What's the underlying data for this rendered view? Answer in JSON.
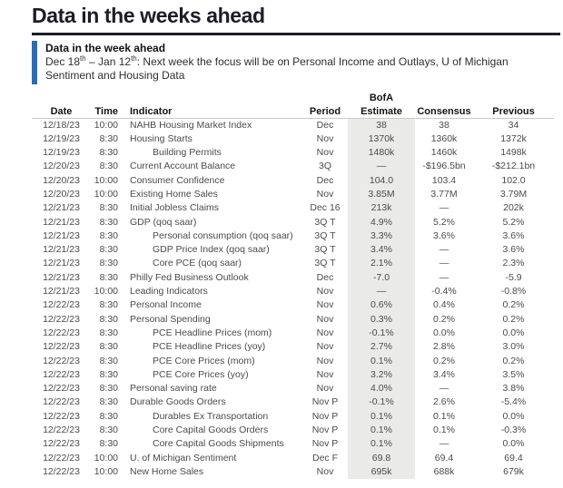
{
  "colors": {
    "ink": "#1c1c26",
    "accent": "#2a6cb5",
    "body_text": "#4b4b4b",
    "estimate_shading": "#eaebe9"
  },
  "page_title": "Data in the weeks ahead",
  "callout": {
    "heading": "Data in the week ahead",
    "body_parts": {
      "p1": "Dec 18",
      "sup1": "th",
      "p2": " – Jan 12",
      "sup2": "th",
      "p3": ": Next week the focus will be on Personal Income and Outlays, U of Michigan Sentiment and Housing Data"
    }
  },
  "table": {
    "headers": {
      "date": "Date",
      "time": "Time",
      "indicator": "Indicator",
      "period": "Period",
      "estimate_line1": "BofA",
      "estimate_line2": "Estimate",
      "consensus": "Consensus",
      "previous": "Previous"
    },
    "rows": [
      {
        "date": "12/18/23",
        "time": "10:00",
        "indicator": "NAHB Housing Market Index",
        "indent": false,
        "period": "Dec",
        "estimate": "38",
        "consensus": "38",
        "previous": "34"
      },
      {
        "date": "12/19/23",
        "time": "8:30",
        "indicator": "Housing Starts",
        "indent": false,
        "period": "Nov",
        "estimate": "1370k",
        "consensus": "1360k",
        "previous": "1372k"
      },
      {
        "date": "12/19/23",
        "time": "8:30",
        "indicator": "Building Permits",
        "indent": true,
        "period": "Nov",
        "estimate": "1480k",
        "consensus": "1460k",
        "previous": "1498k"
      },
      {
        "date": "12/20/23",
        "time": "8:30",
        "indicator": "Current Account Balance",
        "indent": false,
        "period": "3Q",
        "estimate": "—",
        "consensus": "-$196.5bn",
        "previous": "-$212.1bn"
      },
      {
        "date": "12/20/23",
        "time": "10:00",
        "indicator": "Consumer Confidence",
        "indent": false,
        "period": "Dec",
        "estimate": "104.0",
        "consensus": "103.4",
        "previous": "102.0"
      },
      {
        "date": "12/20/23",
        "time": "10:00",
        "indicator": "Existing Home Sales",
        "indent": false,
        "period": "Nov",
        "estimate": "3.85M",
        "consensus": "3.77M",
        "previous": "3.79M"
      },
      {
        "date": "12/21/23",
        "time": "8:30",
        "indicator": "Initial Jobless Claims",
        "indent": false,
        "period": "Dec 16",
        "estimate": "213k",
        "consensus": "—",
        "previous": "202k"
      },
      {
        "date": "12/21/23",
        "time": "8:30",
        "indicator": "GDP (qoq saar)",
        "indent": false,
        "period": "3Q T",
        "estimate": "4.9%",
        "consensus": "5.2%",
        "previous": "5.2%"
      },
      {
        "date": "12/21/23",
        "time": "8:30",
        "indicator": "Personal consumption (qoq saar)",
        "indent": true,
        "period": "3Q T",
        "estimate": "3.3%",
        "consensus": "3.6%",
        "previous": "3.6%"
      },
      {
        "date": "12/21/23",
        "time": "8:30",
        "indicator": "GDP Price Index (qoq saar)",
        "indent": true,
        "period": "3Q T",
        "estimate": "3.4%",
        "consensus": "—",
        "previous": "3.6%"
      },
      {
        "date": "12/21/23",
        "time": "8:30",
        "indicator": "Core PCE (qoq saar)",
        "indent": true,
        "period": "3Q T",
        "estimate": "2.1%",
        "consensus": "—",
        "previous": "2.3%"
      },
      {
        "date": "12/21/23",
        "time": "8:30",
        "indicator": "Philly Fed Business Outlook",
        "indent": false,
        "period": "Dec",
        "estimate": "-7.0",
        "consensus": "—",
        "previous": "-5.9"
      },
      {
        "date": "12/21/23",
        "time": "10:00",
        "indicator": "Leading Indicators",
        "indent": false,
        "period": "Nov",
        "estimate": "—",
        "consensus": "-0.4%",
        "previous": "-0.8%"
      },
      {
        "date": "12/22/23",
        "time": "8:30",
        "indicator": "Personal Income",
        "indent": false,
        "period": "Nov",
        "estimate": "0.6%",
        "consensus": "0.4%",
        "previous": "0.2%"
      },
      {
        "date": "12/22/23",
        "time": "8:30",
        "indicator": "Personal Spending",
        "indent": false,
        "period": "Nov",
        "estimate": "0.3%",
        "consensus": "0.2%",
        "previous": "0.2%"
      },
      {
        "date": "12/22/23",
        "time": "8:30",
        "indicator": "PCE Headline Prices (mom)",
        "indent": true,
        "period": "Nov",
        "estimate": "-0.1%",
        "consensus": "0.0%",
        "previous": "0.0%"
      },
      {
        "date": "12/22/23",
        "time": "8:30",
        "indicator": "PCE Headline Prices (yoy)",
        "indent": true,
        "period": "Nov",
        "estimate": "2.7%",
        "consensus": "2.8%",
        "previous": "3.0%"
      },
      {
        "date": "12/22/23",
        "time": "8:30",
        "indicator": "PCE Core Prices (mom)",
        "indent": true,
        "period": "Nov",
        "estimate": "0.1%",
        "consensus": "0.2%",
        "previous": "0.2%"
      },
      {
        "date": "12/22/23",
        "time": "8:30",
        "indicator": "PCE Core Prices (yoy)",
        "indent": true,
        "period": "Nov",
        "estimate": "3.2%",
        "consensus": "3.4%",
        "previous": "3.5%"
      },
      {
        "date": "12/22/23",
        "time": "8:30",
        "indicator": "Personal saving rate",
        "indent": false,
        "period": "Nov",
        "estimate": "4.0%",
        "consensus": "—",
        "previous": "3.8%"
      },
      {
        "date": "12/22/23",
        "time": "8:30",
        "indicator": "Durable Goods Orders",
        "indent": false,
        "period": "Nov P",
        "estimate": "-0.1%",
        "consensus": "2.6%",
        "previous": "-5.4%"
      },
      {
        "date": "12/22/23",
        "time": "8:30",
        "indicator": "Durables Ex Transportation",
        "indent": true,
        "period": "Nov P",
        "estimate": "0.1%",
        "consensus": "0.1%",
        "previous": "0.0%"
      },
      {
        "date": "12/22/23",
        "time": "8:30",
        "indicator": "Core Capital Goods Orders",
        "indent": true,
        "period": "Nov P",
        "estimate": "0.1%",
        "consensus": "0.1%",
        "previous": "-0.3%"
      },
      {
        "date": "12/22/23",
        "time": "8:30",
        "indicator": "Core Capital Goods Shipments",
        "indent": true,
        "period": "Nov P",
        "estimate": "0.1%",
        "consensus": "—",
        "previous": "0.0%"
      },
      {
        "date": "12/22/23",
        "time": "10:00",
        "indicator": "U. of Michigan Sentiment",
        "indent": false,
        "period": "Dec F",
        "estimate": "69.8",
        "consensus": "69.4",
        "previous": "69.4"
      },
      {
        "date": "12/22/23",
        "time": "10:00",
        "indicator": "New Home Sales",
        "indent": false,
        "period": "Nov",
        "estimate": "695k",
        "consensus": "688k",
        "previous": "679k"
      }
    ]
  }
}
